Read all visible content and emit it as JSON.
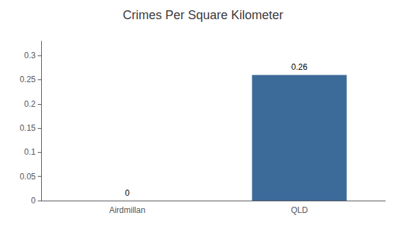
{
  "chart_data": {
    "type": "bar",
    "title": "Crimes Per Square Kilometer",
    "categories": [
      "Airdmillan",
      "QLD"
    ],
    "values": [
      0,
      0.26
    ],
    "color": "#3d6b99",
    "ylim": [
      0,
      0.33
    ],
    "yticks": [
      0,
      0.05,
      0.1,
      0.15,
      0.2,
      0.25,
      0.3
    ],
    "grid": false,
    "data_labels": true
  }
}
